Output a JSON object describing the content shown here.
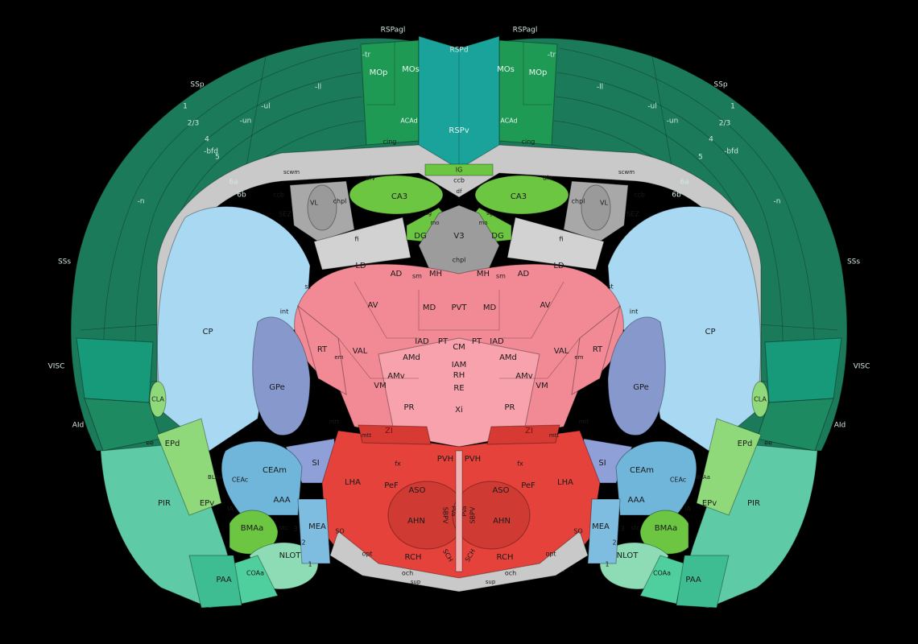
{
  "colors": {
    "cortex": "#1b7a5a",
    "cortex_dark": "#16694d",
    "motor": "#1f9a55",
    "retro": "#1aa39a",
    "hippo": "#6cc641",
    "caudo": "#a9d8f2",
    "pallidum": "#8799cc",
    "thalamus": "#f28a96",
    "thalamus_pale": "#f7a2ad",
    "hypothal": "#e4423a",
    "fiber": "#c9c9c9",
    "ventricle": "#a8a8a8",
    "olfactory": "#5fcaa6",
    "cortsub": "#8fd97a",
    "amygdala": "#70b6da",
    "striatum_ventral": "#7fbde0"
  },
  "labels": {
    "rspagl": "RSPagl",
    "rspd": "RSPd",
    "rspv": "RSPv",
    "mop": "MOp",
    "mos": "MOs",
    "acad": "ACAd",
    "ssp": "SSp",
    "ssii": "SSs",
    "visc": "VISC",
    "aid": "AId",
    "aiv": "AIv",
    "l1": "1",
    "l23": "2/3",
    "l4": "4",
    "l5": "5",
    "l6a": "6a",
    "l6b": "6b",
    "tr": "-tr",
    "ll": "-ll",
    "ul": "-ul",
    "un": "-un",
    "bfd": "-bfd",
    "n": "-n",
    "cing": "cing",
    "scwm": "scwm",
    "ccb": "ccb",
    "sez": "SEZ",
    "ig": "IG",
    "df": "df",
    "alv": "alv",
    "ca3": "CA3",
    "dg": "DG",
    "sg": "sg",
    "mo": "mo",
    "v3": "V3",
    "chpl": "chpl",
    "fi": "fi",
    "vl": "VL",
    "ld": "LD",
    "ad": "AD",
    "sm": "sm",
    "mh": "MH",
    "md": "MD",
    "pvt": "PVT",
    "av": "AV",
    "iad": "IAD",
    "pt": "PT",
    "cm": "CM",
    "rt": "RT",
    "em": "em",
    "val": "VAL",
    "amd": "AMd",
    "iam": "IAM",
    "rh": "RH",
    "amv": "AMv",
    "vm": "VM",
    "re": "RE",
    "pr": "PR",
    "xi": "Xi",
    "st": "st",
    "int": "int",
    "cp": "CP",
    "gpe": "GPe",
    "cla": "CLA",
    "mtt": "mtt",
    "zi": "ZI",
    "ee": "ee",
    "epd": "EPd",
    "epv": "EPv",
    "pir": "PIR",
    "ceam": "CEAm",
    "ceac": "CEAc",
    "bla": "BLAa",
    "aaa": "AAA",
    "si": "SI",
    "ia": "IA",
    "bmaa": "BMAa",
    "stc": "stc",
    "mea": "MEA",
    "nlot": "NLOT",
    "coaa": "COAa",
    "paa": "PAA",
    "n1": "1",
    "n2": "2",
    "n3": "3",
    "lha": "LHA",
    "fx": "fx",
    "pvh": "PVH",
    "pef": "PeF",
    "aso": "ASO",
    "ahn": "AHN",
    "sbpv": "SBPV",
    "pva": "PVa",
    "so": "SO",
    "rch": "RCH",
    "sch": "SCH",
    "opt": "opt",
    "och": "och",
    "sup": "sup"
  }
}
